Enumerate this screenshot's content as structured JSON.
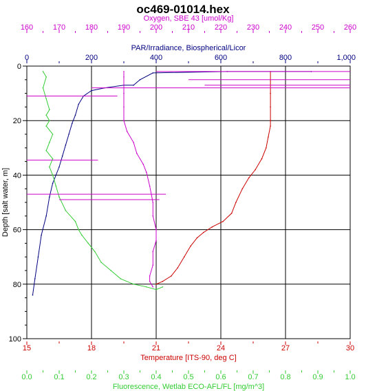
{
  "chart_data": {
    "type": "line",
    "title": "oc469-01014.hex",
    "grid": true,
    "y_axis": {
      "label": "Depth [salt water, m]",
      "range": [
        0,
        100
      ],
      "ticks": [
        "0",
        "20",
        "40",
        "60",
        "80",
        "100"
      ],
      "inverted": true
    },
    "x_axes": [
      {
        "id": "oxygen",
        "position": "top-1",
        "label": "Oxygen, SBE 43 [umol/Kg]",
        "range": [
          160,
          260
        ],
        "ticks": [
          "160",
          "170",
          "180",
          "190",
          "200",
          "210",
          "220",
          "230",
          "240",
          "250",
          "260"
        ],
        "color": "#cc00cc"
      },
      {
        "id": "par",
        "position": "top-2",
        "label": "PAR/Irradiance, Biospherical/Licor",
        "range": [
          0,
          1000
        ],
        "ticks": [
          "0",
          "200",
          "400",
          "600",
          "800",
          "1,000"
        ],
        "color": "#000080"
      },
      {
        "id": "temperature",
        "position": "bottom-1",
        "label": "Temperature [ITS-90, deg C]",
        "range": [
          15,
          30
        ],
        "ticks": [
          "15",
          "18",
          "21",
          "24",
          "27",
          "30"
        ],
        "color": "#cc0000"
      },
      {
        "id": "fluorescence",
        "position": "bottom-2",
        "label": "Fluorescence, Wetlab ECO-AFL/FL [mg/m^3]",
        "range": [
          0,
          1
        ],
        "ticks": [
          "0.0",
          "0.1",
          "0.2",
          "0.3",
          "0.4",
          "0.5",
          "0.6",
          "0.7",
          "0.8",
          "0.9",
          "1.0"
        ],
        "color": "#33cc33"
      }
    ],
    "series": [
      {
        "axis": "temperature",
        "color": "#cc0000",
        "points": [
          [
            26.3,
            2
          ],
          [
            26.3,
            5
          ],
          [
            26.3,
            10
          ],
          [
            26.3,
            15
          ],
          [
            26.3,
            20
          ],
          [
            26.3,
            22
          ],
          [
            26.2,
            26
          ],
          [
            26.1,
            30
          ],
          [
            25.9,
            34
          ],
          [
            25.6,
            38
          ],
          [
            25.3,
            41
          ],
          [
            25.0,
            45
          ],
          [
            24.7,
            50
          ],
          [
            24.5,
            54
          ],
          [
            24.1,
            57
          ],
          [
            23.6,
            59
          ],
          [
            23.2,
            61
          ],
          [
            22.9,
            63
          ],
          [
            22.6,
            66
          ],
          [
            22.3,
            70
          ],
          [
            22.0,
            74
          ],
          [
            21.7,
            77
          ],
          [
            21.3,
            79
          ],
          [
            21.0,
            80
          ]
        ]
      },
      {
        "axis": "par",
        "color": "#000080",
        "points": [
          [
            880,
            2
          ],
          [
            620,
            2
          ],
          [
            390,
            2.5
          ],
          [
            350,
            5
          ],
          [
            330,
            7
          ],
          [
            300,
            7
          ],
          [
            240,
            8
          ],
          [
            200,
            9
          ],
          [
            175,
            11
          ],
          [
            160,
            14
          ],
          [
            150,
            18
          ],
          [
            140,
            21
          ],
          [
            130,
            25
          ],
          [
            120,
            29
          ],
          [
            110,
            33
          ],
          [
            100,
            37
          ],
          [
            90,
            40
          ],
          [
            80,
            43
          ],
          [
            70,
            48
          ],
          [
            60,
            55
          ],
          [
            45,
            62
          ],
          [
            35,
            70
          ],
          [
            25,
            78
          ],
          [
            18,
            84
          ]
        ]
      },
      {
        "axis": "oxygen",
        "color": "#cc00cc",
        "points": [
          [
            190,
            2
          ],
          [
            190,
            4
          ],
          [
            190,
            10
          ],
          [
            190,
            15
          ],
          [
            190,
            20
          ],
          [
            191,
            24
          ],
          [
            193,
            28
          ],
          [
            194,
            32
          ],
          [
            196,
            36
          ],
          [
            197,
            39
          ],
          [
            198,
            44
          ],
          [
            199,
            50
          ],
          [
            199,
            55
          ],
          [
            200,
            60
          ],
          [
            200,
            64
          ],
          [
            199,
            68
          ],
          [
            199,
            73
          ],
          [
            198,
            77
          ],
          [
            198,
            79
          ],
          [
            199,
            81
          ]
        ]
      },
      {
        "axis": "fluorescence",
        "color": "#33cc33",
        "points": [
          [
            0.05,
            2
          ],
          [
            0.06,
            4
          ],
          [
            0.05,
            8
          ],
          [
            0.06,
            12
          ],
          [
            0.07,
            16
          ],
          [
            0.06,
            18
          ],
          [
            0.07,
            20
          ],
          [
            0.06,
            22
          ],
          [
            0.08,
            25
          ],
          [
            0.07,
            28
          ],
          [
            0.06,
            31
          ],
          [
            0.08,
            34
          ],
          [
            0.07,
            37
          ],
          [
            0.08,
            40
          ],
          [
            0.09,
            44
          ],
          [
            0.1,
            48
          ],
          [
            0.12,
            53
          ],
          [
            0.15,
            57
          ],
          [
            0.16,
            60
          ],
          [
            0.17,
            62
          ],
          [
            0.19,
            65
          ],
          [
            0.21,
            68
          ],
          [
            0.23,
            72
          ],
          [
            0.26,
            75
          ],
          [
            0.29,
            78
          ],
          [
            0.33,
            80
          ],
          [
            0.37,
            81
          ],
          [
            0.4,
            82
          ],
          [
            0.42,
            81
          ]
        ]
      }
    ],
    "spikes": [
      {
        "axis": "oxygen",
        "depth": 2,
        "from": 200,
        "to": 260
      },
      {
        "axis": "oxygen",
        "depth": 5,
        "from": 210,
        "to": 260
      },
      {
        "axis": "oxygen",
        "depth": 7,
        "from": 215,
        "to": 260
      },
      {
        "axis": "oxygen",
        "depth": 8,
        "from": 180,
        "to": 260
      },
      {
        "axis": "oxygen",
        "depth": 11,
        "from": 160,
        "to": 188
      },
      {
        "axis": "oxygen",
        "depth": 34.5,
        "from": 160,
        "to": 182
      },
      {
        "axis": "oxygen",
        "depth": 47,
        "from": 160,
        "to": 203
      },
      {
        "axis": "oxygen",
        "depth": 49,
        "from": 170,
        "to": 201
      }
    ]
  }
}
